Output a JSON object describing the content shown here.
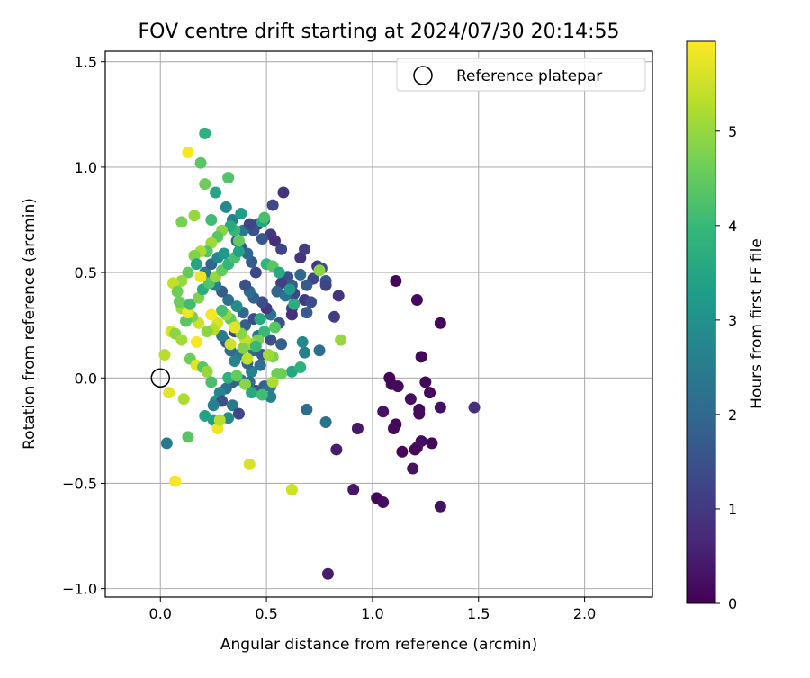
{
  "chart_data": {
    "type": "scatter",
    "title": "FOV centre drift starting at 2024/07/30 20:14:55",
    "xlabel": "Angular distance from reference (arcmin)",
    "ylabel": "Rotation from reference (arcmin)",
    "xlim": [
      -0.26,
      2.32
    ],
    "ylim": [
      -1.04,
      1.55
    ],
    "xticks": [
      0.0,
      0.5,
      1.0,
      1.5,
      2.0
    ],
    "xtick_labels": [
      "0.0",
      "0.5",
      "1.0",
      "1.5",
      "2.0"
    ],
    "yticks": [
      -1.0,
      -0.5,
      0.0,
      0.5,
      1.0,
      1.5
    ],
    "ytick_labels": [
      "−1.0",
      "−0.5",
      "0.0",
      "0.5",
      "1.0",
      "1.5"
    ],
    "grid": true,
    "legend": {
      "position": "top-right",
      "entries": [
        "Reference platepar"
      ]
    },
    "reference_point": {
      "x": 0.0,
      "y": 0.0,
      "label": "Reference platepar"
    },
    "colorbar": {
      "label": "Hours from first FF file",
      "range": [
        0,
        5.95
      ],
      "ticks": [
        0,
        1,
        2,
        3,
        4,
        5
      ],
      "tick_labels": [
        "0",
        "1",
        "2",
        "3",
        "4",
        "5"
      ],
      "colormap": "viridis",
      "color_stops": [
        "#440154",
        "#482878",
        "#3e4989",
        "#31688e",
        "#26828e",
        "#1f9e89",
        "#35b779",
        "#6ece58",
        "#b5de2b",
        "#fde725"
      ]
    },
    "points": [
      [
        1.11,
        0.46,
        0.1
      ],
      [
        1.21,
        0.37,
        0.15
      ],
      [
        1.32,
        0.26,
        0.1
      ],
      [
        1.23,
        0.1,
        0.1
      ],
      [
        1.08,
        0.0,
        0.1
      ],
      [
        1.09,
        -0.03,
        0.1
      ],
      [
        1.12,
        -0.04,
        0.15
      ],
      [
        1.25,
        -0.02,
        0.1
      ],
      [
        1.27,
        -0.07,
        0.15
      ],
      [
        1.18,
        -0.1,
        0.2
      ],
      [
        1.22,
        -0.15,
        0.1
      ],
      [
        1.22,
        -0.17,
        0.15
      ],
      [
        1.32,
        -0.14,
        0.25
      ],
      [
        1.48,
        -0.14,
        0.8
      ],
      [
        1.05,
        -0.16,
        0.3
      ],
      [
        1.11,
        -0.22,
        0.1
      ],
      [
        1.1,
        -0.24,
        0.15
      ],
      [
        1.23,
        -0.3,
        0.2
      ],
      [
        1.21,
        -0.33,
        0.25
      ],
      [
        1.28,
        -0.31,
        0.1
      ],
      [
        1.2,
        -0.34,
        0.15
      ],
      [
        1.14,
        -0.35,
        0.1
      ],
      [
        1.19,
        -0.43,
        0.3
      ],
      [
        0.93,
        -0.24,
        0.4
      ],
      [
        0.83,
        -0.34,
        0.5
      ],
      [
        0.91,
        -0.53,
        0.35
      ],
      [
        1.02,
        -0.57,
        0.1
      ],
      [
        1.05,
        -0.59,
        0.2
      ],
      [
        1.32,
        -0.61,
        0.3
      ],
      [
        0.79,
        -0.93,
        0.45
      ],
      [
        0.58,
        0.88,
        0.9
      ],
      [
        0.53,
        0.82,
        1.3
      ],
      [
        0.49,
        0.75,
        1.8
      ],
      [
        0.46,
        0.73,
        1.1
      ],
      [
        0.44,
        0.7,
        1.5
      ],
      [
        0.52,
        0.68,
        1.0
      ],
      [
        0.48,
        0.66,
        1.6
      ],
      [
        0.54,
        0.65,
        0.8
      ],
      [
        0.57,
        0.61,
        1.2
      ],
      [
        0.66,
        0.57,
        0.9
      ],
      [
        0.68,
        0.61,
        1.1
      ],
      [
        0.74,
        0.53,
        1.0
      ],
      [
        0.76,
        0.52,
        1.4
      ],
      [
        0.72,
        0.47,
        1.3
      ],
      [
        0.78,
        0.46,
        1.6
      ],
      [
        0.78,
        0.44,
        1.2
      ],
      [
        0.69,
        0.44,
        1.7
      ],
      [
        0.66,
        0.49,
        2.0
      ],
      [
        0.6,
        0.48,
        1.5
      ],
      [
        0.62,
        0.44,
        1.8
      ],
      [
        0.57,
        0.45,
        1.1
      ],
      [
        0.55,
        0.41,
        1.9
      ],
      [
        0.63,
        0.4,
        1.3
      ],
      [
        0.59,
        0.39,
        2.2
      ],
      [
        0.68,
        0.37,
        1.0
      ],
      [
        0.71,
        0.36,
        1.4
      ],
      [
        0.69,
        0.31,
        1.7
      ],
      [
        0.62,
        0.33,
        1.2
      ],
      [
        0.62,
        0.3,
        0.8
      ],
      [
        0.56,
        0.26,
        1.6
      ],
      [
        0.52,
        0.3,
        2.3
      ],
      [
        0.5,
        0.33,
        1.0
      ],
      [
        0.48,
        0.36,
        1.4
      ],
      [
        0.44,
        0.38,
        1.8
      ],
      [
        0.42,
        0.41,
        2.1
      ],
      [
        0.4,
        0.44,
        1.5
      ],
      [
        0.45,
        0.5,
        1.3
      ],
      [
        0.43,
        0.55,
        1.7
      ],
      [
        0.41,
        0.59,
        2.0
      ],
      [
        0.38,
        0.62,
        1.6
      ],
      [
        0.36,
        0.65,
        1.9
      ],
      [
        0.39,
        0.7,
        2.4
      ],
      [
        0.42,
        0.73,
        1.2
      ],
      [
        0.34,
        0.75,
        2.6
      ],
      [
        0.31,
        0.81,
        2.8
      ],
      [
        0.82,
        0.29,
        1.1
      ],
      [
        0.84,
        0.39,
        0.9
      ],
      [
        0.75,
        0.13,
        2.1
      ],
      [
        0.68,
        0.12,
        2.6
      ],
      [
        0.67,
        0.17,
        2.8
      ],
      [
        0.57,
        0.16,
        1.8
      ],
      [
        0.52,
        0.18,
        1.5
      ],
      [
        0.46,
        0.2,
        2.4
      ],
      [
        0.44,
        0.13,
        2.0
      ],
      [
        0.48,
        0.11,
        1.7
      ],
      [
        0.47,
        0.06,
        2.2
      ],
      [
        0.43,
        0.03,
        2.6
      ],
      [
        0.41,
        0.07,
        1.9
      ],
      [
        0.37,
        0.11,
        2.3
      ],
      [
        0.35,
        0.08,
        2.7
      ],
      [
        0.33,
        0.13,
        2.1
      ],
      [
        0.31,
        0.17,
        1.6
      ],
      [
        0.29,
        0.2,
        2.5
      ],
      [
        0.35,
        0.22,
        1.2
      ],
      [
        0.4,
        0.25,
        1.8
      ],
      [
        0.44,
        0.28,
        1.4
      ],
      [
        0.39,
        0.31,
        2.0
      ],
      [
        0.36,
        0.34,
        2.9
      ],
      [
        0.32,
        0.37,
        2.2
      ],
      [
        0.29,
        0.41,
        1.7
      ],
      [
        0.26,
        0.44,
        2.6
      ],
      [
        0.24,
        0.47,
        3.0
      ],
      [
        0.21,
        0.5,
        2.4
      ],
      [
        0.24,
        0.54,
        1.9
      ],
      [
        0.27,
        0.57,
        2.8
      ],
      [
        0.3,
        0.59,
        3.2
      ],
      [
        0.49,
        -0.04,
        1.9
      ],
      [
        0.52,
        -0.04,
        2.3
      ],
      [
        0.52,
        -0.09,
        2.6
      ],
      [
        0.45,
        -0.06,
        1.6
      ],
      [
        0.42,
        -0.02,
        2.1
      ],
      [
        0.38,
        -0.01,
        2.5
      ],
      [
        0.34,
        -0.02,
        1.8
      ],
      [
        0.31,
        -0.05,
        2.2
      ],
      [
        0.28,
        -0.07,
        2.7
      ],
      [
        0.26,
        -0.11,
        3.1
      ],
      [
        0.29,
        -0.11,
        1.5
      ],
      [
        0.34,
        -0.13,
        2.4
      ],
      [
        0.37,
        -0.17,
        1.3
      ],
      [
        0.32,
        -0.19,
        2.9
      ],
      [
        0.25,
        -0.13,
        2.6
      ],
      [
        0.78,
        -0.21,
        2.3
      ],
      [
        0.69,
        -0.15,
        2.1
      ],
      [
        0.25,
        -0.2,
        3.3
      ],
      [
        0.21,
        -0.18,
        3.4
      ],
      [
        0.03,
        -0.31,
        2.4
      ],
      [
        0.62,
        0.03,
        3.5
      ],
      [
        0.66,
        0.05,
        3.8
      ],
      [
        0.55,
        0.02,
        4.6
      ],
      [
        0.53,
        0.1,
        4.8
      ],
      [
        0.54,
        0.24,
        4.4
      ],
      [
        0.49,
        0.22,
        4.0
      ],
      [
        0.47,
        0.28,
        3.6
      ],
      [
        0.46,
        0.18,
        4.7
      ],
      [
        0.43,
        0.16,
        5.1
      ],
      [
        0.4,
        0.18,
        5.4
      ],
      [
        0.38,
        0.21,
        4.9
      ],
      [
        0.35,
        0.25,
        5.2
      ],
      [
        0.33,
        0.28,
        4.5
      ],
      [
        0.31,
        0.3,
        5.0
      ],
      [
        0.29,
        0.32,
        4.2
      ],
      [
        0.27,
        0.26,
        5.6
      ],
      [
        0.25,
        0.23,
        5.3
      ],
      [
        0.22,
        0.22,
        4.9
      ],
      [
        0.18,
        0.26,
        5.5
      ],
      [
        0.15,
        0.29,
        4.7
      ],
      [
        0.12,
        0.27,
        4.4
      ],
      [
        0.1,
        0.33,
        5.1
      ],
      [
        0.09,
        0.36,
        4.6
      ],
      [
        0.13,
        0.31,
        5.8
      ],
      [
        0.14,
        0.35,
        4.1
      ],
      [
        0.18,
        0.38,
        4.8
      ],
      [
        0.2,
        0.42,
        3.7
      ],
      [
        0.23,
        0.45,
        4.3
      ],
      [
        0.26,
        0.48,
        5.0
      ],
      [
        0.29,
        0.51,
        4.5
      ],
      [
        0.32,
        0.54,
        3.9
      ],
      [
        0.35,
        0.57,
        4.2
      ],
      [
        0.37,
        0.6,
        3.4
      ],
      [
        0.37,
        0.65,
        4.5
      ],
      [
        0.35,
        0.7,
        4.0
      ],
      [
        0.33,
        0.72,
        3.6
      ],
      [
        0.29,
        0.7,
        4.9
      ],
      [
        0.27,
        0.67,
        4.4
      ],
      [
        0.24,
        0.64,
        5.1
      ],
      [
        0.22,
        0.6,
        4.3
      ],
      [
        0.19,
        0.6,
        5.2
      ],
      [
        0.16,
        0.58,
        4.8
      ],
      [
        0.17,
        0.54,
        3.5
      ],
      [
        0.13,
        0.5,
        4.5
      ],
      [
        0.1,
        0.46,
        5.0
      ],
      [
        0.06,
        0.45,
        5.4
      ],
      [
        0.08,
        0.41,
        4.6
      ],
      [
        0.05,
        0.22,
        5.6
      ],
      [
        0.07,
        0.21,
        4.9
      ],
      [
        0.1,
        0.18,
        5.1
      ],
      [
        0.02,
        0.11,
        5.3
      ],
      [
        0.14,
        0.09,
        4.6
      ],
      [
        0.17,
        0.06,
        5.7
      ],
      [
        0.2,
        0.05,
        4.4
      ],
      [
        0.22,
        0.03,
        5.0
      ],
      [
        0.24,
        -0.02,
        4.2
      ],
      [
        0.32,
        0.0,
        3.8
      ],
      [
        0.36,
        0.01,
        4.5
      ],
      [
        0.4,
        -0.03,
        4.9
      ],
      [
        0.43,
        -0.07,
        3.6
      ],
      [
        0.48,
        -0.08,
        4.1
      ],
      [
        0.53,
        -0.02,
        5.2
      ],
      [
        0.57,
        0.02,
        4.6
      ],
      [
        0.51,
        0.11,
        5.1
      ],
      [
        0.41,
        0.09,
        5.4
      ],
      [
        0.39,
        0.14,
        4.8
      ],
      [
        0.33,
        0.16,
        5.5
      ],
      [
        0.45,
        0.15,
        4.0
      ],
      [
        0.5,
        0.54,
        3.9
      ],
      [
        0.53,
        0.53,
        4.4
      ],
      [
        0.56,
        0.5,
        3.6
      ],
      [
        0.61,
        0.42,
        3.2
      ],
      [
        0.63,
        0.35,
        3.7
      ],
      [
        0.48,
        0.74,
        3.5
      ],
      [
        0.49,
        0.76,
        4.2
      ],
      [
        0.38,
        0.78,
        3.3
      ],
      [
        0.32,
        0.95,
        4.3
      ],
      [
        0.21,
        0.92,
        4.6
      ],
      [
        0.19,
        1.02,
        4.4
      ],
      [
        0.21,
        1.16,
        3.8
      ],
      [
        0.26,
        0.88,
        3.5
      ],
      [
        0.24,
        0.75,
        4.1
      ],
      [
        0.16,
        0.77,
        5.0
      ],
      [
        0.1,
        0.74,
        4.7
      ],
      [
        0.13,
        1.07,
        5.9
      ],
      [
        0.75,
        0.51,
        4.9
      ],
      [
        0.85,
        0.18,
        5.0
      ],
      [
        0.07,
        -0.49,
        5.9
      ],
      [
        0.04,
        -0.07,
        5.7
      ],
      [
        0.11,
        -0.1,
        5.2
      ],
      [
        0.13,
        -0.28,
        4.4
      ],
      [
        0.42,
        -0.41,
        5.6
      ],
      [
        0.27,
        -0.24,
        5.8
      ],
      [
        0.28,
        -0.2,
        5.3
      ],
      [
        0.62,
        -0.53,
        5.5
      ],
      [
        0.17,
        0.17,
        5.9
      ],
      [
        0.19,
        0.48,
        5.8
      ],
      [
        0.24,
        0.3,
        5.9
      ],
      [
        0.35,
        0.24,
        5.7
      ]
    ]
  }
}
